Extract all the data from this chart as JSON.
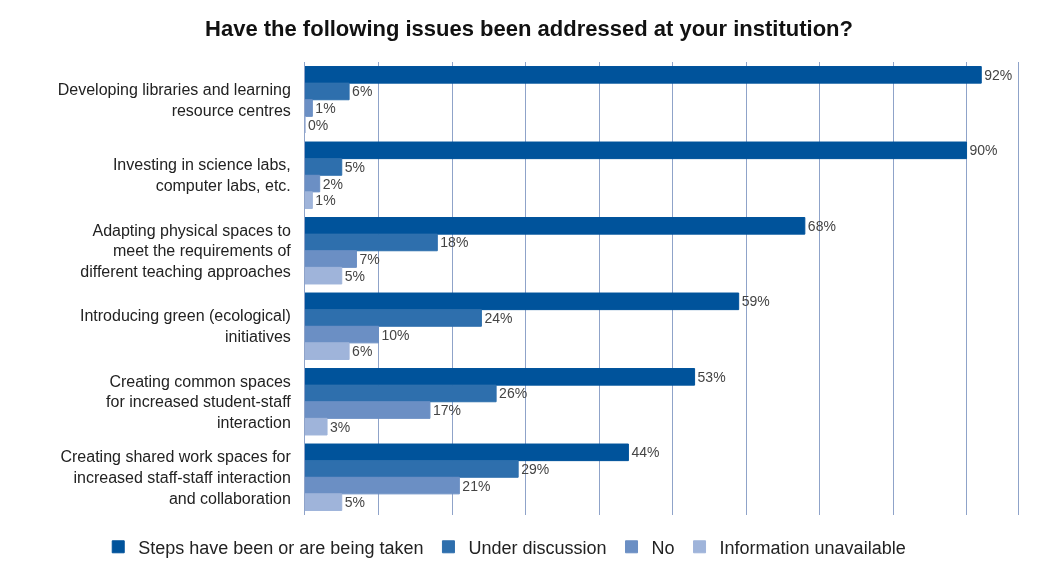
{
  "chart_data": {
    "type": "bar",
    "orientation": "horizontal",
    "title": "Have the following issues been addressed at your institution?",
    "categories": [
      "Developing libraries and learning\nresource centres",
      "Investing in science labs,\ncomputer labs, etc.",
      "Adapting physical spaces to\nmeet the requirements of\ndifferent teaching approaches",
      "Introducing green (ecological)\ninitiatives",
      "Creating common spaces\nfor increased student-staff\ninteraction",
      "Creating shared work spaces for\nincreased staff-staff interaction\nand collaboration"
    ],
    "series": [
      {
        "name": "Steps have been or are being taken",
        "color": "#00539b",
        "values": [
          92,
          90,
          68,
          59,
          53,
          44
        ],
        "value_labels": [
          "92%",
          "90%",
          "68%",
          "59%",
          "53%",
          "44%"
        ]
      },
      {
        "name": "Under discussion",
        "color": "#2e6fad",
        "values": [
          6,
          5,
          18,
          24,
          26,
          29
        ],
        "value_labels": [
          "6%",
          "5%",
          "18%",
          "24%",
          "26%",
          "29%"
        ]
      },
      {
        "name": "No",
        "color": "#6b8fc4",
        "values": [
          1,
          2,
          7,
          10,
          17,
          21
        ],
        "value_labels": [
          "1%",
          "2%",
          "7%",
          "10%",
          "17%",
          "21%"
        ]
      },
      {
        "name": "Information unavailable",
        "color": "#9fb4da",
        "values": [
          0,
          1,
          5,
          6,
          3,
          5
        ],
        "value_labels": [
          "0%",
          "1%",
          "5%",
          "6%",
          "3%",
          "5%"
        ]
      }
    ],
    "xlim": [
      0,
      97
    ],
    "xticks": [
      {
        "value": 0,
        "label": null
      },
      {
        "value": 10,
        "label": null
      },
      {
        "value": 20,
        "label": null
      },
      {
        "value": 30,
        "label": null
      },
      {
        "value": 40,
        "label": null
      },
      {
        "value": 50,
        "label": null
      },
      {
        "value": 60,
        "label": null
      },
      {
        "value": 70,
        "label": null
      },
      {
        "value": 80,
        "label": null
      },
      {
        "value": 90,
        "label": null
      }
    ],
    "grid": "x",
    "tick_labels": "y",
    "legend": "bottom"
  }
}
